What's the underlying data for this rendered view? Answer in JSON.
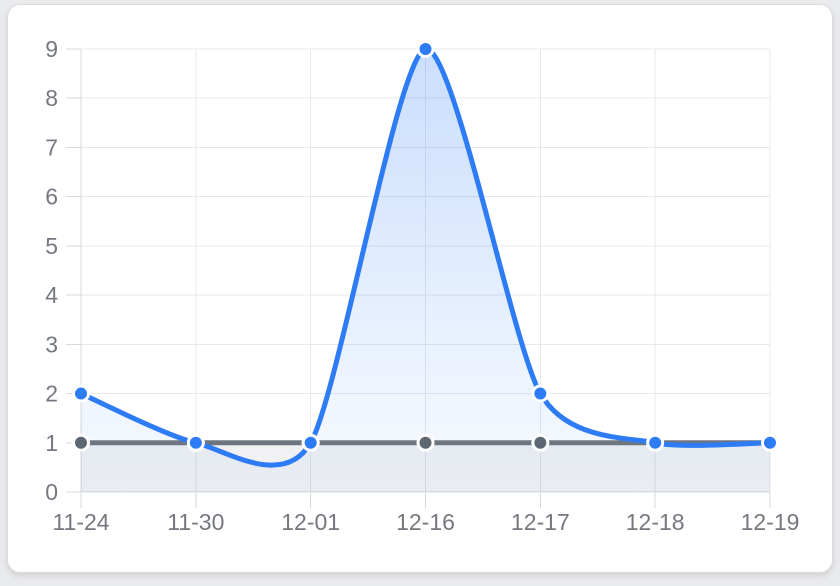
{
  "page": {
    "background": "#e9eaec"
  },
  "card": {
    "background": "#ffffff",
    "border_color": "#d8dadd"
  },
  "chart_style": {
    "grid_color": "#e7e8ea",
    "axis_color": "#d6d8db",
    "tick_label_color": "#75797f",
    "point_halo_color": "#ffffff"
  },
  "chart_data": {
    "type": "line",
    "title": "",
    "xlabel": "",
    "ylabel": "",
    "categories": [
      "11-24",
      "11-30",
      "12-01",
      "12-16",
      "12-17",
      "12-18",
      "12-19"
    ],
    "series": [
      {
        "name": "baseline",
        "values": [
          1,
          1,
          1,
          1,
          1,
          1,
          1
        ],
        "line_color": "#6d7680",
        "point_color": "#5d6772",
        "area_top": "rgba(105,115,125,0.10)",
        "area_bottom": "rgba(105,115,125,0.10)",
        "smooth": false
      },
      {
        "name": "values",
        "values": [
          2,
          1,
          1,
          9,
          2,
          1,
          1
        ],
        "line_color": "#2e7cf5",
        "point_color": "#2e7cf5",
        "area_top": "rgba(46,124,245,0.25)",
        "area_bottom": "rgba(46,124,245,0.03)",
        "smooth": true
      }
    ],
    "ylim": [
      0,
      9
    ],
    "y_ticks": [
      0,
      1,
      2,
      3,
      4,
      5,
      6,
      7,
      8,
      9
    ],
    "grid": true,
    "legend": false
  }
}
